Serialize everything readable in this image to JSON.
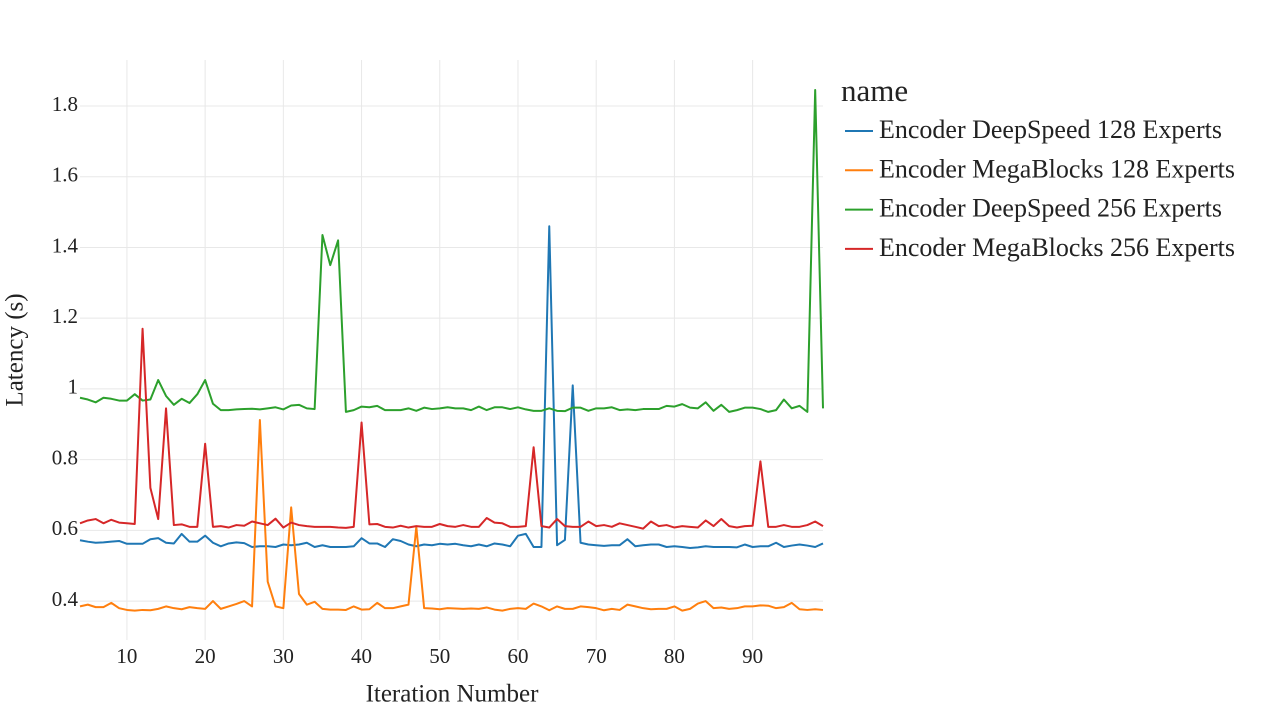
{
  "chart_data": {
    "type": "line",
    "xlabel": "Iteration Number",
    "ylabel": "Latency (s)",
    "legend_title": "name",
    "legend_position": "right",
    "grid": true,
    "x": [
      4,
      5,
      6,
      7,
      8,
      9,
      10,
      11,
      12,
      13,
      14,
      15,
      16,
      17,
      18,
      19,
      20,
      21,
      22,
      23,
      24,
      25,
      26,
      27,
      28,
      29,
      30,
      31,
      32,
      33,
      34,
      35,
      36,
      37,
      38,
      39,
      40,
      41,
      42,
      43,
      44,
      45,
      46,
      47,
      48,
      49,
      50,
      51,
      52,
      53,
      54,
      55,
      56,
      57,
      58,
      59,
      60,
      61,
      62,
      63,
      64,
      65,
      66,
      67,
      68,
      69,
      70,
      71,
      72,
      73,
      74,
      75,
      76,
      77,
      78,
      79,
      80,
      81,
      82,
      83,
      84,
      85,
      86,
      87,
      88,
      89,
      90,
      91,
      92,
      93,
      94,
      95,
      96,
      97,
      98,
      99
    ],
    "xlim": [
      4,
      99
    ],
    "xticks": [
      10,
      20,
      30,
      40,
      50,
      60,
      70,
      80,
      90
    ],
    "ylim": [
      0.29,
      1.93
    ],
    "yticks": [
      0.4,
      0.6,
      0.8,
      1,
      1.2,
      1.4,
      1.6,
      1.8
    ],
    "series": [
      {
        "name": "Encoder DeepSpeed 128 Experts",
        "color": "#1f77b4",
        "values": [
          0.572,
          0.568,
          0.565,
          0.566,
          0.568,
          0.57,
          0.562,
          0.562,
          0.562,
          0.575,
          0.578,
          0.565,
          0.563,
          0.59,
          0.568,
          0.568,
          0.585,
          0.565,
          0.555,
          0.563,
          0.566,
          0.564,
          0.553,
          0.555,
          0.555,
          0.553,
          0.56,
          0.558,
          0.56,
          0.565,
          0.553,
          0.558,
          0.553,
          0.553,
          0.553,
          0.555,
          0.578,
          0.563,
          0.563,
          0.553,
          0.575,
          0.57,
          0.56,
          0.555,
          0.56,
          0.558,
          0.562,
          0.56,
          0.562,
          0.558,
          0.555,
          0.56,
          0.555,
          0.563,
          0.56,
          0.555,
          0.585,
          0.59,
          0.553,
          0.553,
          1.46,
          0.558,
          0.573,
          1.01,
          0.565,
          0.56,
          0.558,
          0.556,
          0.558,
          0.558,
          0.575,
          0.555,
          0.558,
          0.56,
          0.56,
          0.553,
          0.555,
          0.553,
          0.55,
          0.552,
          0.555,
          0.553,
          0.553,
          0.553,
          0.552,
          0.56,
          0.553,
          0.555,
          0.555,
          0.565,
          0.553,
          0.557,
          0.56,
          0.557,
          0.553,
          0.563
        ]
      },
      {
        "name": "Encoder MegaBlocks 128 Experts",
        "color": "#ff7f0e",
        "values": [
          0.385,
          0.39,
          0.383,
          0.383,
          0.395,
          0.38,
          0.375,
          0.373,
          0.375,
          0.374,
          0.378,
          0.385,
          0.38,
          0.377,
          0.383,
          0.38,
          0.378,
          0.4,
          0.378,
          0.385,
          0.392,
          0.4,
          0.385,
          0.912,
          0.455,
          0.385,
          0.38,
          0.665,
          0.42,
          0.39,
          0.398,
          0.378,
          0.376,
          0.376,
          0.375,
          0.385,
          0.376,
          0.377,
          0.395,
          0.38,
          0.38,
          0.385,
          0.39,
          0.61,
          0.38,
          0.379,
          0.377,
          0.38,
          0.379,
          0.378,
          0.379,
          0.378,
          0.382,
          0.376,
          0.373,
          0.378,
          0.38,
          0.378,
          0.393,
          0.385,
          0.374,
          0.385,
          0.378,
          0.378,
          0.385,
          0.383,
          0.38,
          0.374,
          0.378,
          0.375,
          0.39,
          0.385,
          0.38,
          0.377,
          0.378,
          0.378,
          0.385,
          0.373,
          0.378,
          0.393,
          0.4,
          0.38,
          0.382,
          0.378,
          0.38,
          0.385,
          0.385,
          0.388,
          0.387,
          0.38,
          0.383,
          0.395,
          0.377,
          0.375,
          0.377,
          0.375
        ]
      },
      {
        "name": "Encoder DeepSpeed 256 Experts",
        "color": "#2ca02c",
        "values": [
          0.975,
          0.97,
          0.962,
          0.975,
          0.972,
          0.967,
          0.967,
          0.985,
          0.967,
          0.97,
          1.025,
          0.98,
          0.955,
          0.972,
          0.96,
          0.985,
          1.025,
          0.958,
          0.94,
          0.94,
          0.942,
          0.943,
          0.944,
          0.942,
          0.945,
          0.948,
          0.942,
          0.953,
          0.955,
          0.945,
          0.943,
          1.435,
          1.35,
          1.42,
          0.935,
          0.94,
          0.95,
          0.948,
          0.952,
          0.94,
          0.94,
          0.94,
          0.945,
          0.938,
          0.947,
          0.943,
          0.945,
          0.948,
          0.945,
          0.945,
          0.94,
          0.95,
          0.94,
          0.948,
          0.948,
          0.943,
          0.948,
          0.942,
          0.938,
          0.938,
          0.945,
          0.938,
          0.937,
          0.947,
          0.947,
          0.938,
          0.945,
          0.945,
          0.948,
          0.94,
          0.942,
          0.94,
          0.943,
          0.943,
          0.943,
          0.952,
          0.95,
          0.957,
          0.947,
          0.945,
          0.962,
          0.938,
          0.955,
          0.935,
          0.94,
          0.947,
          0.947,
          0.943,
          0.935,
          0.94,
          0.97,
          0.945,
          0.952,
          0.935,
          1.845,
          0.945
        ]
      },
      {
        "name": "Encoder MegaBlocks 256 Experts",
        "color": "#d62728",
        "values": [
          0.62,
          0.628,
          0.632,
          0.62,
          0.63,
          0.622,
          0.62,
          0.618,
          1.17,
          0.72,
          0.632,
          0.945,
          0.615,
          0.617,
          0.61,
          0.61,
          0.845,
          0.61,
          0.612,
          0.608,
          0.615,
          0.613,
          0.625,
          0.62,
          0.615,
          0.633,
          0.608,
          0.622,
          0.615,
          0.612,
          0.61,
          0.61,
          0.61,
          0.608,
          0.607,
          0.61,
          0.905,
          0.617,
          0.618,
          0.61,
          0.608,
          0.613,
          0.608,
          0.612,
          0.61,
          0.61,
          0.618,
          0.612,
          0.61,
          0.615,
          0.61,
          0.61,
          0.635,
          0.622,
          0.62,
          0.61,
          0.61,
          0.612,
          0.835,
          0.612,
          0.608,
          0.632,
          0.612,
          0.61,
          0.61,
          0.625,
          0.612,
          0.615,
          0.61,
          0.62,
          0.615,
          0.61,
          0.605,
          0.625,
          0.612,
          0.615,
          0.608,
          0.612,
          0.61,
          0.608,
          0.628,
          0.612,
          0.632,
          0.612,
          0.608,
          0.612,
          0.613,
          0.795,
          0.61,
          0.61,
          0.615,
          0.61,
          0.61,
          0.615,
          0.625,
          0.612
        ]
      }
    ]
  }
}
